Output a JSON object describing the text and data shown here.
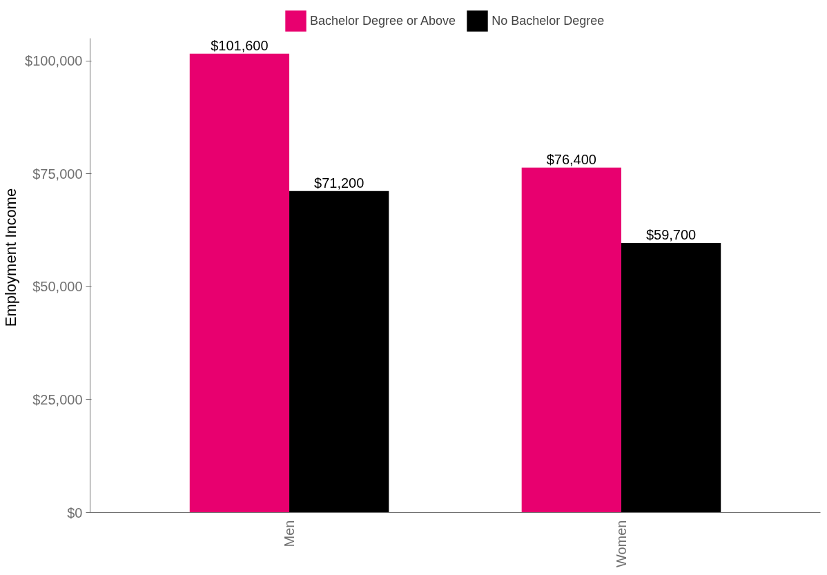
{
  "chart_data": {
    "type": "bar",
    "ylabel": "Employment Income",
    "categories": [
      "Men",
      "Women"
    ],
    "series": [
      {
        "name": "Bachelor Degree or Above",
        "color": "#e8006f",
        "values": [
          101600,
          76400
        ],
        "value_labels": [
          "$101,600",
          "$76,400"
        ]
      },
      {
        "name": "No Bachelor Degree",
        "color": "#000000",
        "values": [
          71200,
          59700
        ],
        "value_labels": [
          "$71,200",
          "$59,700"
        ]
      }
    ],
    "ylim": [
      0,
      105000
    ],
    "yticks": [
      {
        "value": 0,
        "label": "$0"
      },
      {
        "value": 25000,
        "label": "$25,000"
      },
      {
        "value": 50000,
        "label": "$50,000"
      },
      {
        "value": 75000,
        "label": "$75,000"
      },
      {
        "value": 100000,
        "label": "$100,000"
      }
    ],
    "grid": false,
    "legend": "top"
  }
}
